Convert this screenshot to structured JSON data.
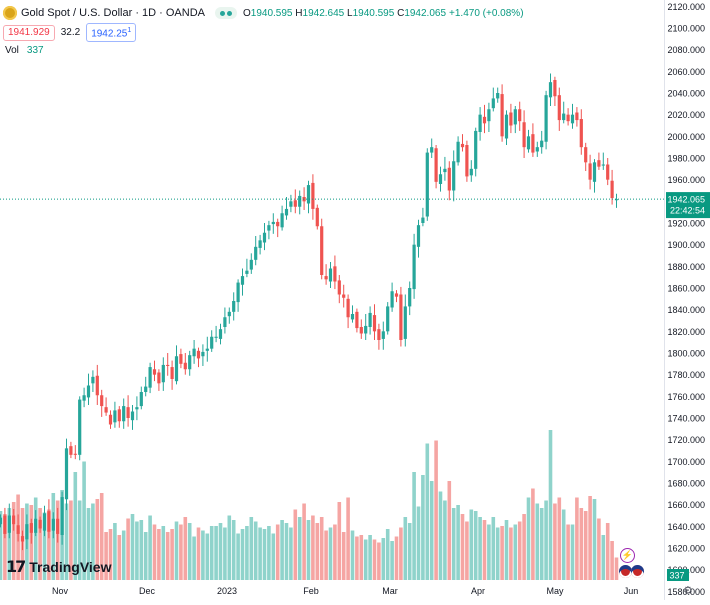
{
  "header": {
    "title": "Gold Spot / U.S. Dollar · 1D · OANDA",
    "o_label": "O",
    "o_value": "1940.595",
    "h_label": "H",
    "h_value": "1942.645",
    "l_label": "L",
    "l_value": "1940.595",
    "c_label": "C",
    "c_value": "1942.065",
    "change": "+1.470 (+0.08%)",
    "sell_price": "1941.929",
    "spread": "32.2",
    "buy_price": "1942.25",
    "buy_price_sup": "1",
    "vol_label": "Vol",
    "vol_value": "337"
  },
  "price_label": {
    "value": "1942.065",
    "countdown": "22:42:54"
  },
  "volume_label": "337",
  "brand": "TradingView",
  "colors": {
    "up": "#26a69a",
    "down": "#ef5350",
    "vol_up": "#8fd3cb",
    "vol_down": "#f5a5a3",
    "axis_text": "#131722",
    "last_price": "#089981"
  },
  "chart_data": {
    "type": "candlestick",
    "title": "Gold Spot / U.S. Dollar · 1D · OANDA",
    "y_ticks": [
      "2120.000",
      "2100.000",
      "2080.000",
      "2060.000",
      "2040.000",
      "2020.000",
      "2000.000",
      "1980.000",
      "1960.000",
      "1940.000",
      "1920.000",
      "1900.000",
      "1880.000",
      "1860.000",
      "1840.000",
      "1820.000",
      "1800.000",
      "1780.000",
      "1760.000",
      "1740.000",
      "1720.000",
      "1700.000",
      "1680.000",
      "1660.000",
      "1640.000",
      "1620.000",
      "1600.000",
      "1580.000"
    ],
    "ylim": [
      1572,
      2124
    ],
    "x_ticks": [
      "Nov",
      "Dec",
      "2023",
      "Feb",
      "Mar",
      "Apr",
      "May",
      "Jun"
    ],
    "last_price": 1942.065,
    "closes": [
      1648,
      1633,
      1650,
      1642,
      1633,
      1626,
      1642,
      1634,
      1647,
      1638,
      1652,
      1635,
      1647,
      1633,
      1667,
      1712,
      1706,
      1706,
      1757,
      1761,
      1770,
      1778,
      1761,
      1751,
      1745,
      1734,
      1747,
      1737,
      1751,
      1740,
      1746,
      1750,
      1764,
      1769,
      1787,
      1780,
      1772,
      1789,
      1788,
      1776,
      1797,
      1790,
      1785,
      1798,
      1804,
      1795,
      1801,
      1804,
      1815,
      1815,
      1822,
      1833,
      1838,
      1848,
      1865,
      1871,
      1876,
      1886,
      1898,
      1904,
      1911,
      1918,
      1921,
      1917,
      1929,
      1933,
      1940,
      1935,
      1945,
      1940,
      1955,
      1933,
      1917,
      1872,
      1868,
      1878,
      1866,
      1854,
      1851,
      1833,
      1836,
      1823,
      1818,
      1825,
      1837,
      1820,
      1812,
      1820,
      1843,
      1857,
      1852,
      1812,
      1843,
      1860,
      1900,
      1918,
      1925,
      1985,
      1990,
      1958,
      1965,
      1970,
      1950,
      1977,
      1995,
      1990,
      1963,
      1970,
      2005,
      2020,
      2012,
      2025,
      2035,
      2040,
      2000,
      2020,
      2010,
      2025,
      2014,
      1990,
      2000,
      1985,
      1990,
      1996,
      2038,
      2050,
      2037,
      2015,
      2021,
      2014,
      2020,
      2015,
      1990,
      1976,
      1960,
      1976,
      1972,
      1974,
      1960,
      1943,
      1942
    ],
    "volumes_normalized": [
      0.46,
      0.44,
      0.48,
      0.52,
      0.57,
      0.48,
      0.51,
      0.5,
      0.55,
      0.48,
      0.45,
      0.47,
      0.58,
      0.53,
      0.6,
      0.51,
      0.53,
      0.72,
      0.53,
      0.79,
      0.48,
      0.51,
      0.54,
      0.58,
      0.32,
      0.34,
      0.38,
      0.3,
      0.33,
      0.41,
      0.44,
      0.39,
      0.4,
      0.32,
      0.43,
      0.37,
      0.34,
      0.36,
      0.32,
      0.34,
      0.39,
      0.37,
      0.42,
      0.38,
      0.29,
      0.35,
      0.33,
      0.31,
      0.36,
      0.36,
      0.38,
      0.35,
      0.43,
      0.4,
      0.31,
      0.34,
      0.36,
      0.42,
      0.39,
      0.35,
      0.34,
      0.36,
      0.31,
      0.37,
      0.4,
      0.38,
      0.35,
      0.47,
      0.42,
      0.51,
      0.4,
      0.43,
      0.38,
      0.42,
      0.33,
      0.35,
      0.37,
      0.52,
      0.32,
      0.55,
      0.33,
      0.29,
      0.3,
      0.27,
      0.3,
      0.27,
      0.25,
      0.28,
      0.34,
      0.26,
      0.29,
      0.35,
      0.42,
      0.38,
      0.72,
      0.49,
      0.7,
      0.91,
      0.66,
      0.93,
      0.59,
      0.53,
      0.66,
      0.48,
      0.5,
      0.44,
      0.39,
      0.47,
      0.46,
      0.42,
      0.4,
      0.37,
      0.42,
      0.35,
      0.36,
      0.4,
      0.35,
      0.37,
      0.39,
      0.44,
      0.55,
      0.61,
      0.51,
      0.48,
      0.53,
      1.0,
      0.51,
      0.55,
      0.47,
      0.37,
      0.37,
      0.55,
      0.48,
      0.46,
      0.56,
      0.54,
      0.41,
      0.3,
      0.38,
      0.26,
      0.15
    ]
  }
}
